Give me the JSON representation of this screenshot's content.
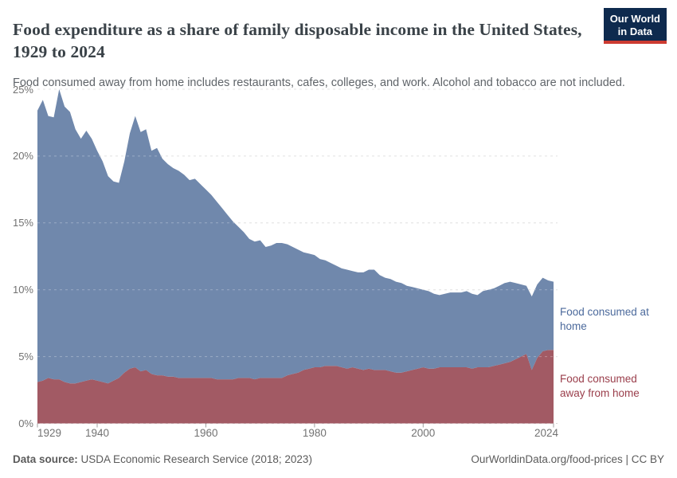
{
  "header": {
    "title": "Food expenditure as a share of family disposable income in the United States, 1929 to 2024",
    "subtitle": "Food consumed away from home includes restaurants, cafes, colleges, and work. Alcohol and tobacco are not included.",
    "logo": {
      "line1": "Our World",
      "line2": "in Data",
      "bg_color": "#0e2a4e",
      "accent_color": "#cc3b31"
    }
  },
  "footer": {
    "source_label": "Data source:",
    "source_value": "USDA Economic Research Service (2018; 2023)",
    "rights": "OurWorldinData.org/food-prices | CC BY"
  },
  "chart_data": {
    "type": "area",
    "stacked": true,
    "title": "Food expenditure as a share of family disposable income in the United States, 1929 to 2024",
    "xlabel": "",
    "ylabel": "",
    "xlim": [
      1929,
      2024
    ],
    "ylim": [
      0,
      25
    ],
    "yticks": [
      0,
      5,
      10,
      15,
      20,
      25
    ],
    "ytick_suffix": "%",
    "xticks": [
      1929,
      1940,
      1960,
      1980,
      2000,
      2024
    ],
    "grid": "horizontal-dashed",
    "legend_position": "right-of-plot-inline-labels",
    "x": [
      1929,
      1930,
      1931,
      1932,
      1933,
      1934,
      1935,
      1936,
      1937,
      1938,
      1939,
      1940,
      1941,
      1942,
      1943,
      1944,
      1945,
      1946,
      1947,
      1948,
      1949,
      1950,
      1951,
      1952,
      1953,
      1954,
      1955,
      1956,
      1957,
      1958,
      1959,
      1960,
      1961,
      1962,
      1963,
      1964,
      1965,
      1966,
      1967,
      1968,
      1969,
      1970,
      1971,
      1972,
      1973,
      1974,
      1975,
      1976,
      1977,
      1978,
      1979,
      1980,
      1981,
      1982,
      1983,
      1984,
      1985,
      1986,
      1987,
      1988,
      1989,
      1990,
      1991,
      1992,
      1993,
      1994,
      1995,
      1996,
      1997,
      1998,
      1999,
      2000,
      2001,
      2002,
      2003,
      2004,
      2005,
      2006,
      2007,
      2008,
      2009,
      2010,
      2011,
      2012,
      2013,
      2014,
      2015,
      2016,
      2017,
      2018,
      2019,
      2020,
      2021,
      2022,
      2023,
      2024
    ],
    "series": [
      {
        "name": "Food consumed away from home",
        "slug": "food-away-from-home",
        "color": "#a25a64",
        "label_color": "#9a3e4b",
        "values": [
          3.1,
          3.2,
          3.4,
          3.3,
          3.3,
          3.1,
          3.0,
          3.0,
          3.1,
          3.2,
          3.3,
          3.2,
          3.1,
          3.0,
          3.2,
          3.4,
          3.8,
          4.1,
          4.2,
          3.9,
          4.0,
          3.7,
          3.6,
          3.6,
          3.5,
          3.5,
          3.4,
          3.4,
          3.4,
          3.4,
          3.4,
          3.4,
          3.4,
          3.3,
          3.3,
          3.3,
          3.3,
          3.4,
          3.4,
          3.4,
          3.3,
          3.4,
          3.4,
          3.4,
          3.4,
          3.4,
          3.6,
          3.7,
          3.8,
          4.0,
          4.1,
          4.2,
          4.2,
          4.3,
          4.3,
          4.3,
          4.2,
          4.1,
          4.2,
          4.1,
          4.0,
          4.1,
          4.0,
          4.0,
          4.0,
          3.9,
          3.8,
          3.8,
          3.9,
          4.0,
          4.1,
          4.2,
          4.1,
          4.1,
          4.2,
          4.2,
          4.2,
          4.2,
          4.2,
          4.2,
          4.1,
          4.2,
          4.2,
          4.2,
          4.3,
          4.4,
          4.5,
          4.6,
          4.8,
          5.0,
          5.2,
          4.0,
          4.9,
          5.4,
          5.5,
          5.5
        ]
      },
      {
        "name": "Food consumed at home",
        "slug": "food-at-home",
        "color": "#7088ac",
        "label_color": "#4c6a9c",
        "values": [
          20.3,
          21.0,
          19.6,
          19.6,
          21.7,
          20.6,
          20.3,
          19.0,
          18.2,
          18.7,
          18.0,
          17.2,
          16.5,
          15.5,
          14.9,
          14.6,
          15.8,
          17.6,
          18.8,
          17.9,
          18.0,
          16.7,
          17.0,
          16.2,
          15.9,
          15.6,
          15.5,
          15.2,
          14.8,
          14.9,
          14.5,
          14.1,
          13.7,
          13.3,
          12.8,
          12.3,
          11.8,
          11.3,
          10.9,
          10.4,
          10.3,
          10.3,
          9.8,
          9.9,
          10.1,
          10.1,
          9.8,
          9.5,
          9.2,
          8.8,
          8.6,
          8.4,
          8.1,
          7.9,
          7.7,
          7.5,
          7.4,
          7.4,
          7.2,
          7.2,
          7.3,
          7.4,
          7.5,
          7.1,
          6.9,
          6.9,
          6.8,
          6.7,
          6.4,
          6.2,
          6.0,
          5.8,
          5.8,
          5.6,
          5.4,
          5.5,
          5.6,
          5.6,
          5.6,
          5.7,
          5.6,
          5.4,
          5.7,
          5.8,
          5.8,
          5.9,
          6.0,
          6.0,
          5.7,
          5.4,
          5.1,
          5.5,
          5.5,
          5.5,
          5.2,
          5.1
        ]
      }
    ]
  }
}
